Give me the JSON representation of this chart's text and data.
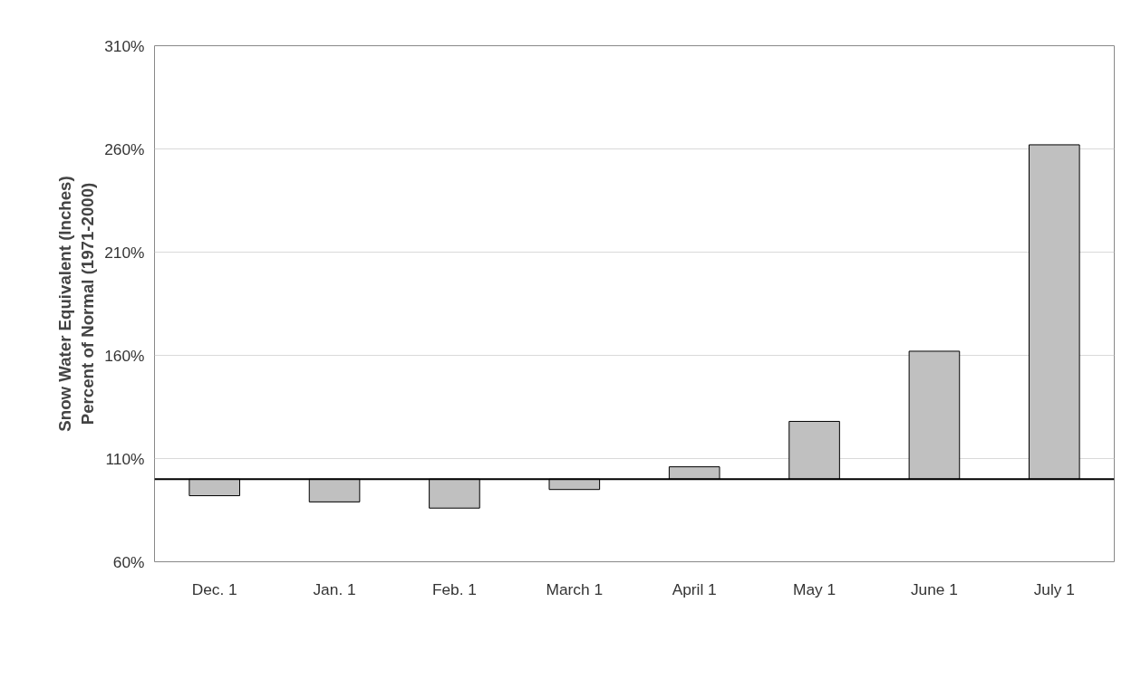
{
  "chart_data": {
    "type": "bar",
    "ylabel": "Snow Water Equivalent (Inches)\nPercent of Normal (1971-2000)",
    "categories": [
      "Dec. 1",
      "Jan. 1",
      "Feb. 1",
      "March 1",
      "April 1",
      "May 1",
      "June 1",
      "July 1"
    ],
    "values": [
      -8,
      -11,
      -14,
      -5,
      6,
      28,
      62,
      162
    ],
    "base": [
      100,
      100,
      100,
      100,
      100,
      100,
      100,
      100
    ],
    "color": "#c0c0c0",
    "ylim": [
      60,
      310
    ],
    "yticks": [
      {
        "value": 60,
        "label": "60%"
      },
      {
        "value": 110,
        "label": "110%"
      },
      {
        "value": 160,
        "label": "160%"
      },
      {
        "value": 210,
        "label": "210%"
      },
      {
        "value": 260,
        "label": "260%"
      },
      {
        "value": 310,
        "label": "310%"
      }
    ],
    "ref_lines": [
      {
        "axis": "y",
        "value": 100,
        "label": null,
        "color": "#000000"
      }
    ],
    "grid": "y"
  }
}
